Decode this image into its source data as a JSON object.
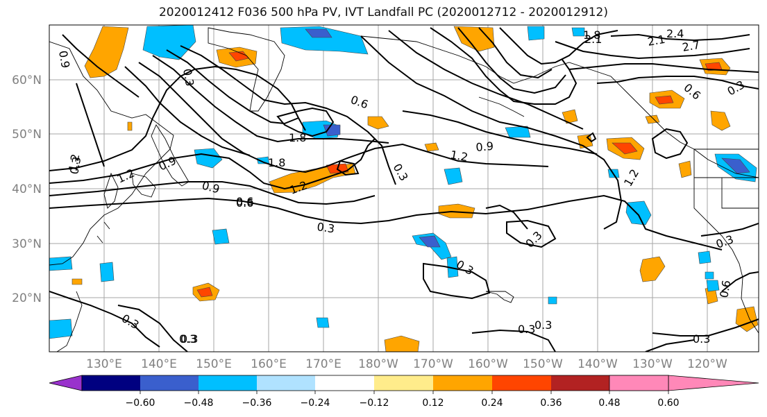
{
  "title": "2020012412 F036 500 hPa PV, IVT Landfall PC (2020012712 - 2020012912)",
  "map": {
    "lat_labels": [
      "60°N",
      "50°N",
      "40°N",
      "30°N",
      "20°N"
    ],
    "lon_labels": [
      "130°E",
      "140°E",
      "150°E",
      "160°E",
      "170°E",
      "180°W",
      "170°W",
      "160°W",
      "150°W",
      "140°W",
      "130°W",
      "120°W"
    ],
    "axis_label_color": "#808080",
    "contour_labels": [
      "0.9",
      "0.3",
      "1.2",
      "0.9",
      "1.2",
      "0.6",
      "0.3",
      "1.8",
      "0.6",
      "1.8",
      "1.2",
      "0.9",
      "0.6",
      "0.3",
      "0.3",
      "0.3",
      "1.2",
      "0.9",
      "0.3",
      "1.2",
      "0.3",
      "0.3",
      "1.8",
      "2.1",
      "2.4",
      "2.1",
      "2.7",
      "0.6",
      "0.3",
      "0.3",
      "0.6",
      "0.3",
      "0.3",
      "0.3",
      "0.3"
    ]
  },
  "colorbar": {
    "tick_labels": [
      "−0.60",
      "−0.48",
      "−0.36",
      "−0.24",
      "−0.12",
      "0.12",
      "0.24",
      "0.36",
      "0.48",
      "0.60"
    ],
    "colors": [
      "#9932cc",
      "#000080",
      "#3a5fcd",
      "#00bfff",
      "#b0e2ff",
      "#ffffff",
      "#ffec8b",
      "#ffa500",
      "#ff4500",
      "#b22222",
      "#ff88b8"
    ],
    "extend_low_color": "#9932cc",
    "extend_high_color": "#ff88b8"
  }
}
